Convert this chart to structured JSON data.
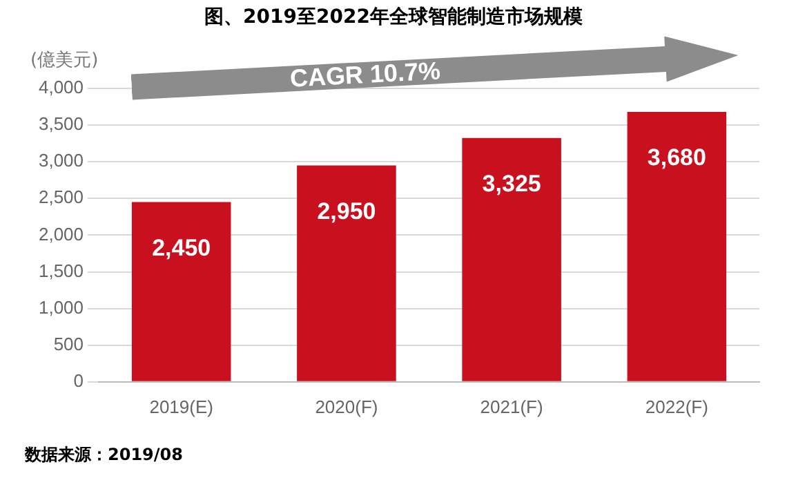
{
  "chart_data": {
    "type": "bar",
    "title": "图、2019至2022年全球智能制造市场规模",
    "ylabel": "(億美元)",
    "categories": [
      "2019(E)",
      "2020(F)",
      "2021(F)",
      "2022(F)"
    ],
    "values": [
      2450,
      2950,
      3325,
      3680
    ],
    "color": "#c8101e",
    "value_labels": [
      "2,450",
      "2,950",
      "3,325",
      "3,680"
    ],
    "ylim": [
      0,
      4000
    ],
    "yticks": [
      0,
      500,
      {
        "value": 1000,
        "label": "1,000"
      },
      {
        "value": 1500,
        "label": "1,500"
      },
      {
        "value": 2000,
        "label": "2,000"
      },
      {
        "value": 2500,
        "label": "2,500"
      },
      {
        "value": 3000,
        "label": "3,000"
      },
      {
        "value": 3500,
        "label": "3,500"
      },
      {
        "value": 4000,
        "label": "4,000"
      }
    ],
    "grid": "y",
    "legend": false,
    "annotations": [
      "CAGR 10.7%",
      "数据来源：2019/08"
    ]
  }
}
